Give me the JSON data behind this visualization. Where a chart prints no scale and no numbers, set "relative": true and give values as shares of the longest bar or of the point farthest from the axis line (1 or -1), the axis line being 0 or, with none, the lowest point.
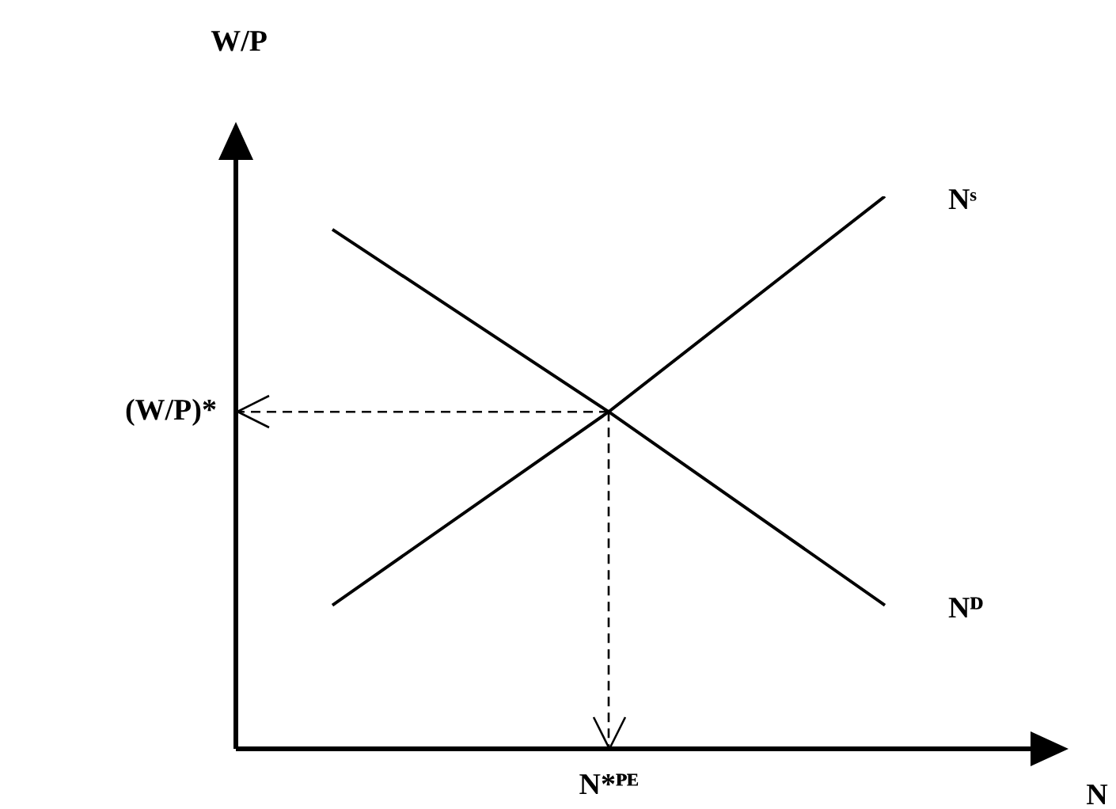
{
  "chart_data": {
    "type": "line",
    "relative": true,
    "ylabel": "W/P",
    "xlabel": "N",
    "categories": [
      null,
      null,
      null
    ],
    "series": [
      {
        "name": "Nᴰ",
        "color": "#000000",
        "values": [
          0.94,
          0.61,
          0.26
        ]
      },
      {
        "name": "Nˢ",
        "color": "#000000",
        "values": [
          0.26,
          0.61,
          1
        ]
      }
    ],
    "ref_lines": [
      {
        "axis": "y",
        "value": 0.61,
        "label": "(W/P)*",
        "color": "#000000",
        "line_style": "dashed"
      }
    ],
    "annotations": [
      "N*ᴾᴱ"
    ],
    "tick_labels": false,
    "grid": false,
    "legend": false,
    "marker": "none",
    "line_style": "solid"
  }
}
